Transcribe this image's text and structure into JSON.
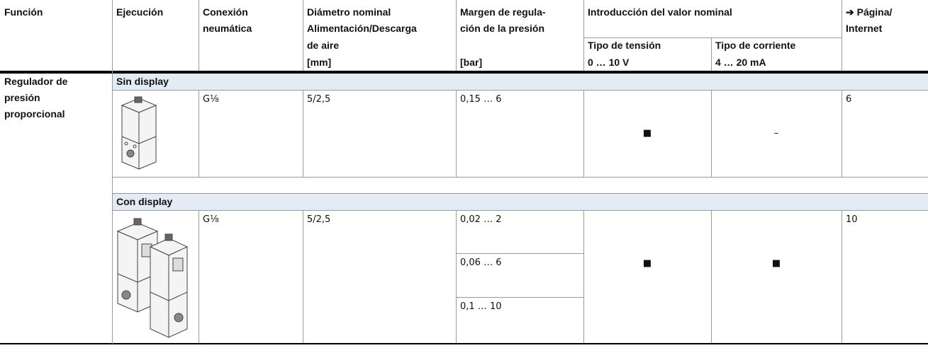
{
  "header": {
    "funcion": "Función",
    "ejecucion": "Ejecución",
    "conexion": [
      "Conexión",
      "neumática"
    ],
    "diametro": [
      "Diámetro nominal",
      "Alimentación/Descarga",
      "de aire",
      "[mm]"
    ],
    "margen": [
      "Margen de regula-",
      "ción de la presión",
      "[bar]"
    ],
    "introduccion": {
      "title": "Introducción del valor nominal",
      "tension": [
        "Tipo de tensión",
        "0 … 10 V"
      ],
      "corriente": [
        "Tipo de corriente",
        "4 … 20 mA"
      ]
    },
    "pagina": [
      "➔ Página/",
      "Internet"
    ]
  },
  "function": [
    "Regulador de",
    "presión",
    "proporcional"
  ],
  "groups": [
    {
      "title": "Sin display",
      "conexion": "G⅛",
      "diametro": "5/2,5",
      "margen": [
        "0,15 … 6"
      ],
      "tension": "■",
      "corriente": "–",
      "pagina": "6"
    },
    {
      "title": "Con display",
      "conexion": "G⅛",
      "diametro": "5/2,5",
      "margen": [
        "0,02 … 2",
        "0,06 … 6",
        "0,1 … 10"
      ],
      "tension": "■",
      "corriente": "■",
      "pagina": "10"
    }
  ]
}
